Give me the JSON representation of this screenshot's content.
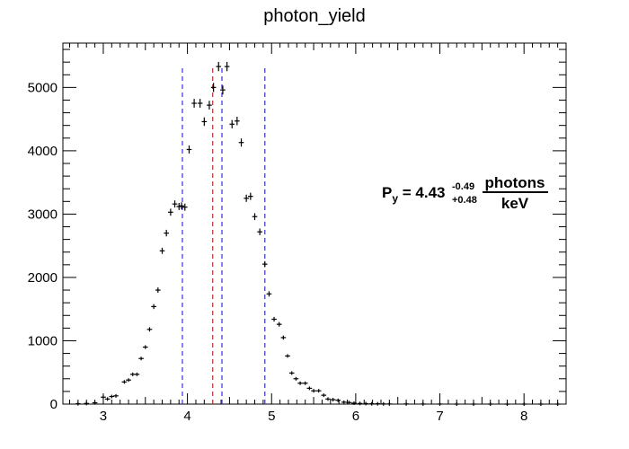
{
  "chart_data": {
    "type": "scatter",
    "title": "photon_yield",
    "xlabel": "",
    "ylabel": "",
    "xlim": [
      2.52,
      8.5
    ],
    "ylim": [
      0,
      5700
    ],
    "grid": false,
    "x_ticks": [
      "3",
      "4",
      "5",
      "6",
      "7",
      "8"
    ],
    "y_ticks": [
      "0",
      "1000",
      "2000",
      "3000",
      "4000",
      "5000"
    ],
    "series": [
      {
        "x": [
          2.7,
          2.8,
          2.9,
          3.0,
          3.05,
          3.1,
          3.15,
          3.25,
          3.3,
          3.35,
          3.4,
          3.45,
          3.5,
          3.55,
          3.6,
          3.65,
          3.7,
          3.75,
          3.8,
          3.85,
          3.9,
          3.93,
          3.97,
          4.02,
          4.08,
          4.15,
          4.2,
          4.26,
          4.31,
          4.37,
          4.42,
          4.47,
          4.53,
          4.59,
          4.64,
          4.7,
          4.75,
          4.8,
          4.86,
          4.92,
          4.97,
          5.03,
          5.09,
          5.14,
          5.19,
          5.24,
          5.29,
          5.34,
          5.4,
          5.45,
          5.5,
          5.56,
          5.62,
          5.67,
          5.73,
          5.79,
          5.86,
          5.92,
          5.98,
          6.05,
          6.12,
          6.19,
          6.26,
          6.33,
          6.4,
          6.6,
          6.8,
          7.0,
          7.2,
          7.4,
          7.6,
          7.8,
          8.0,
          8.2,
          8.4
        ],
        "y": [
          5,
          10,
          20,
          110,
          80,
          120,
          130,
          350,
          380,
          470,
          470,
          720,
          900,
          1180,
          1540,
          1800,
          2420,
          2700,
          3030,
          3160,
          3120,
          3130,
          3110,
          4020,
          4750,
          4750,
          4460,
          4720,
          5000,
          5330,
          4960,
          5330,
          4420,
          4470,
          4130,
          3250,
          3280,
          2960,
          2720,
          2210,
          1740,
          1340,
          1260,
          1050,
          760,
          490,
          400,
          330,
          330,
          250,
          210,
          210,
          140,
          80,
          70,
          60,
          30,
          25,
          15,
          10,
          8,
          5,
          5,
          3,
          2,
          2,
          1,
          1,
          0,
          0,
          0,
          0,
          0,
          0,
          0
        ],
        "err": [
          3,
          4,
          5,
          11,
          9,
          11,
          12,
          19,
          20,
          22,
          22,
          27,
          30,
          34,
          39,
          42,
          49,
          52,
          55,
          56,
          56,
          56,
          56,
          63,
          69,
          69,
          67,
          69,
          71,
          73,
          70,
          73,
          66,
          67,
          64,
          57,
          57,
          54,
          52,
          47,
          42,
          37,
          36,
          32,
          28,
          22,
          20,
          18,
          18,
          16,
          15,
          15,
          12,
          9,
          8,
          8,
          6,
          5,
          4,
          3,
          3,
          2,
          2,
          2,
          1,
          1,
          1,
          1,
          0,
          0,
          0,
          0,
          0,
          0,
          0
        ],
        "x_bin_halfwidth": 0.03
      }
    ],
    "vlines": [
      {
        "x": 3.94,
        "color": "#4040e0"
      },
      {
        "x": 4.3,
        "color": "#e03030"
      },
      {
        "x": 4.41,
        "color": "#4040e0"
      },
      {
        "x": 4.92,
        "color": "#4040e0"
      }
    ],
    "vline_range": [
      0,
      5350
    ],
    "annotation": {
      "prefix": "P",
      "prefix_sub": "y",
      "equals_value": " = 4.43",
      "err_up": "-0.49",
      "err_down": "+0.48",
      "numerator": "photons",
      "denominator": "keV"
    }
  }
}
